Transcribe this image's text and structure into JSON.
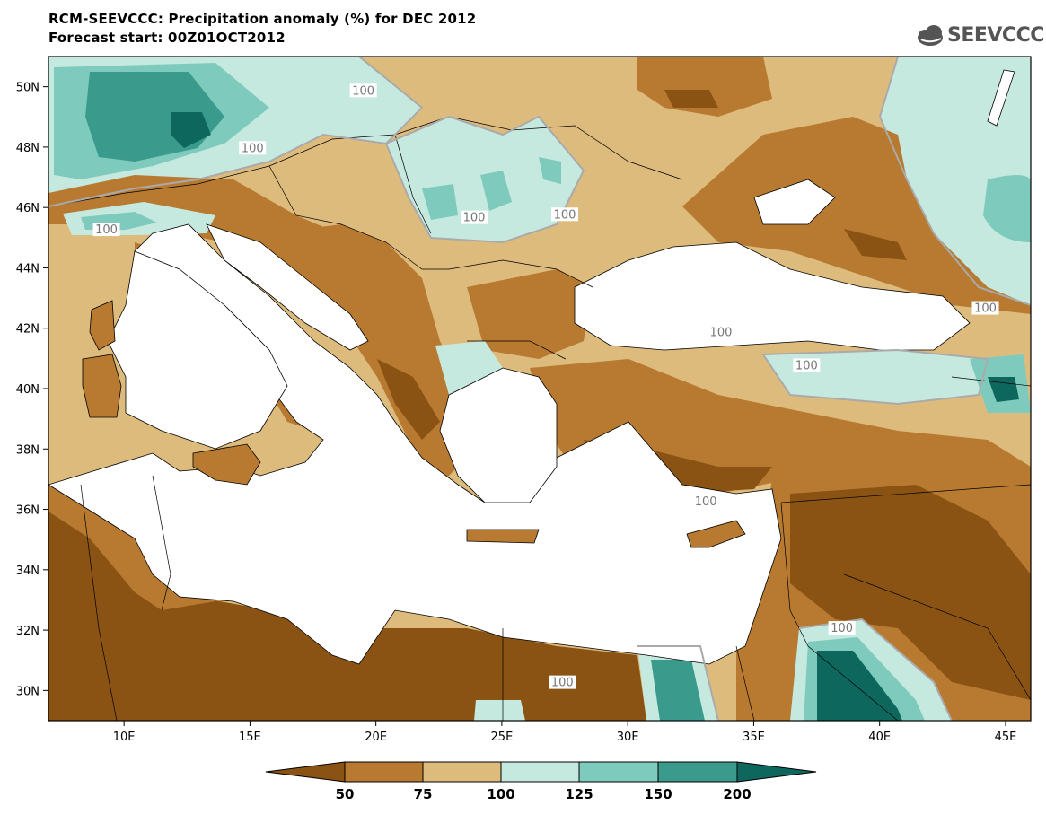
{
  "title_line1": "RCM-SEEVCCC: Precipitation anomaly (%) for DEC 2012",
  "title_line2": "Forecast start: 00Z01OCT2012",
  "logo_text": "SEEVCCC",
  "map": {
    "lon_range": [
      7,
      46
    ],
    "lat_range": [
      29,
      51
    ],
    "lat_ticks": [
      {
        "value": 50,
        "label": "50N"
      },
      {
        "value": 48,
        "label": "48N"
      },
      {
        "value": 46,
        "label": "46N"
      },
      {
        "value": 44,
        "label": "44N"
      },
      {
        "value": 42,
        "label": "42N"
      },
      {
        "value": 40,
        "label": "40N"
      },
      {
        "value": 38,
        "label": "38N"
      },
      {
        "value": 36,
        "label": "36N"
      },
      {
        "value": 34,
        "label": "34N"
      },
      {
        "value": 32,
        "label": "32N"
      },
      {
        "value": 30,
        "label": "30N"
      }
    ],
    "lon_ticks": [
      {
        "value": 10,
        "label": "10E"
      },
      {
        "value": 15,
        "label": "15E"
      },
      {
        "value": 20,
        "label": "20E"
      },
      {
        "value": 25,
        "label": "25E"
      },
      {
        "value": 30,
        "label": "30E"
      },
      {
        "value": 35,
        "label": "35E"
      },
      {
        "value": 40,
        "label": "40E"
      },
      {
        "value": 45,
        "label": "45E"
      }
    ],
    "contour_labels": [
      {
        "lon": 19.5,
        "lat": 49.8,
        "text": "100"
      },
      {
        "lon": 15.1,
        "lat": 47.9,
        "text": "100"
      },
      {
        "lon": 9.3,
        "lat": 45.2,
        "text": "100"
      },
      {
        "lon": 23.9,
        "lat": 45.6,
        "text": "100"
      },
      {
        "lon": 27.5,
        "lat": 45.7,
        "text": "100"
      },
      {
        "lon": 44.2,
        "lat": 42.6,
        "text": "100"
      },
      {
        "lon": 33.7,
        "lat": 41.8,
        "text": "100"
      },
      {
        "lon": 37.1,
        "lat": 40.7,
        "text": "100"
      },
      {
        "lon": 33.1,
        "lat": 36.2,
        "text": "100"
      },
      {
        "lon": 38.5,
        "lat": 32.0,
        "text": "100"
      },
      {
        "lon": 27.4,
        "lat": 30.2,
        "text": "100"
      }
    ]
  },
  "legend": {
    "colors": {
      "lt50": "#8a5313",
      "b50_75": "#b77a30",
      "b75_100": "#ddbb7d",
      "b100_125": "#c6e9df",
      "b125_150": "#7ecbbd",
      "b150_200": "#3a9a8c",
      "gt200": "#0e675c"
    },
    "labels": [
      "50",
      "75",
      "100",
      "125",
      "150",
      "200"
    ]
  }
}
